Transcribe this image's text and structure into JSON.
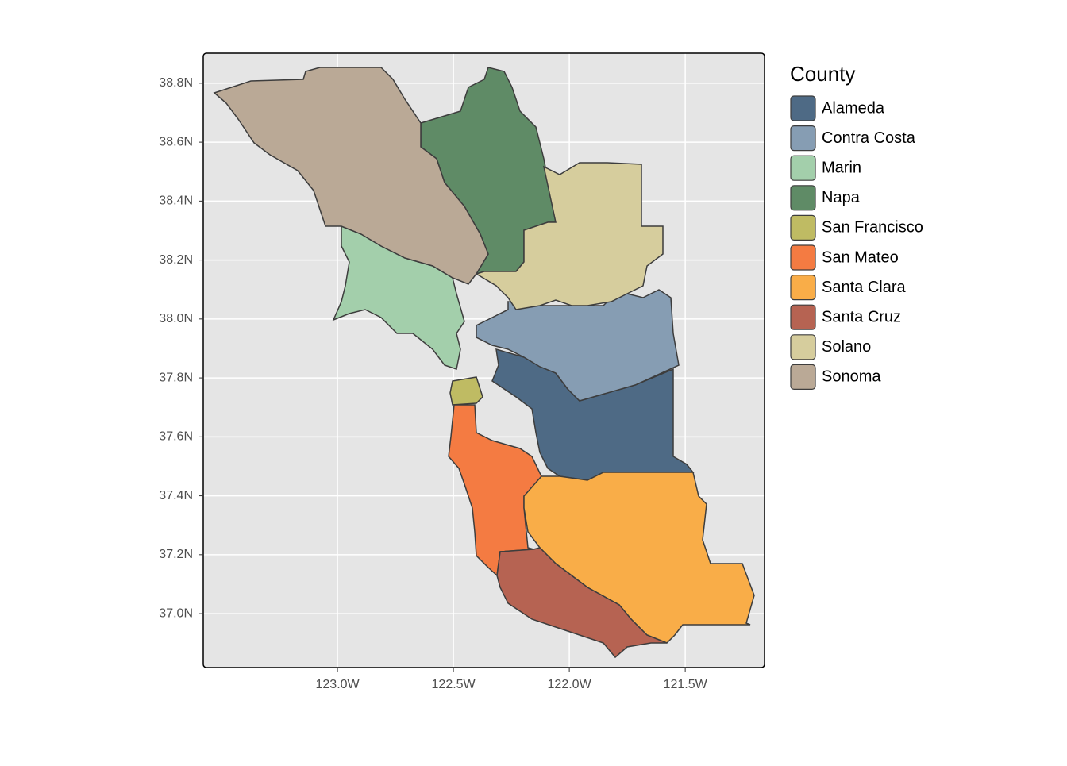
{
  "chart_data": {
    "type": "map",
    "xlim": [
      -123.579,
      -121.158
    ],
    "ylim": [
      36.817,
      38.902
    ],
    "xticks": [
      {
        "value": -123.0,
        "label": "123.0W"
      },
      {
        "value": -122.5,
        "label": "122.5W"
      },
      {
        "value": -122.0,
        "label": "122.0W"
      },
      {
        "value": -121.5,
        "label": "121.5W"
      }
    ],
    "yticks": [
      {
        "value": 37.0,
        "label": "37.0N"
      },
      {
        "value": 37.2,
        "label": "37.2N"
      },
      {
        "value": 37.4,
        "label": "37.4N"
      },
      {
        "value": 37.6,
        "label": "37.6N"
      },
      {
        "value": 37.8,
        "label": "37.8N"
      },
      {
        "value": 38.0,
        "label": "38.0N"
      },
      {
        "value": 38.2,
        "label": "38.2N"
      },
      {
        "value": 38.4,
        "label": "38.4N"
      },
      {
        "value": 38.6,
        "label": "38.6N"
      },
      {
        "value": 38.8,
        "label": "38.8N"
      }
    ],
    "grid": true,
    "legend": {
      "title": "County",
      "items": [
        {
          "name": "Alameda",
          "color": "#4e6a85"
        },
        {
          "name": "Contra Costa",
          "color": "#869db3"
        },
        {
          "name": "Marin",
          "color": "#a3cfab"
        },
        {
          "name": "Napa",
          "color": "#5f8b66"
        },
        {
          "name": "San Francisco",
          "color": "#bfbb63"
        },
        {
          "name": "San Mateo",
          "color": "#f47b42"
        },
        {
          "name": "Santa Clara",
          "color": "#f9ad48"
        },
        {
          "name": "Santa Cruz",
          "color": "#b66352"
        },
        {
          "name": "Solano",
          "color": "#d6cd9d"
        },
        {
          "name": "Sonoma",
          "color": "#baa996"
        }
      ]
    }
  }
}
